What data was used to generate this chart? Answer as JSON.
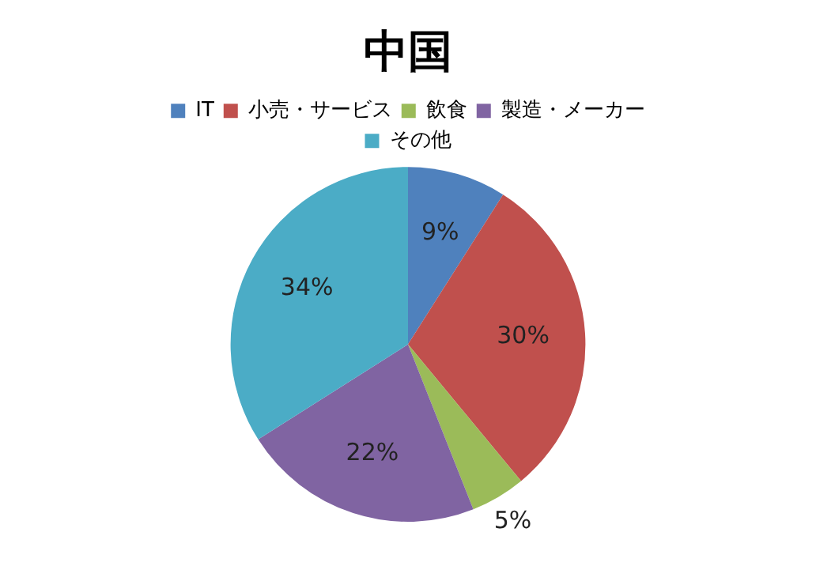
{
  "chart_data": {
    "type": "pie",
    "title": "中国",
    "categories": [
      "IT",
      "小売・サービス",
      "飲食",
      "製造・メーカー",
      "その他"
    ],
    "values": [
      9,
      30,
      5,
      22,
      34
    ],
    "colors": [
      "#4f81bd",
      "#c0504d",
      "#9bbb59",
      "#8064a2",
      "#4bacc6"
    ],
    "value_labels": [
      "9%",
      "30%",
      "5%",
      "22%",
      "34%"
    ],
    "legend": "top"
  }
}
